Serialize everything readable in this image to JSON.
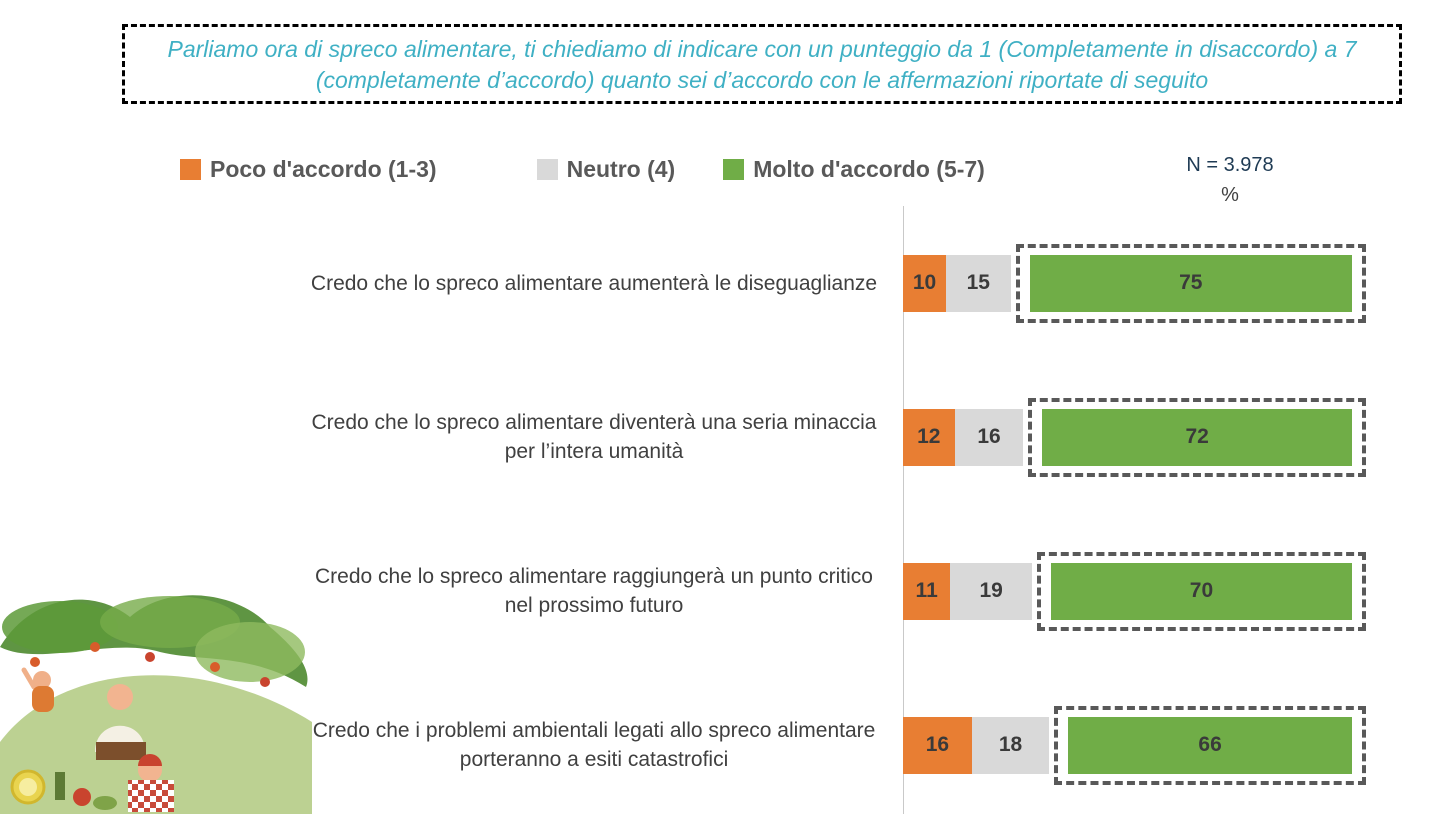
{
  "header": {
    "question_text": "Parliamo ora di spreco alimentare, ti chiediamo di indicare con un punteggio da 1 (Completamente in disaccordo) a 7 (completamente d’accordo) quanto sei d’accordo con le affermazioni riportate di seguito"
  },
  "legend": {
    "items": [
      {
        "label": "Poco d'accordo (1-3)",
        "color": "#E87E33"
      },
      {
        "label": "Neutro (4)",
        "color": "#D9D9D9"
      },
      {
        "label": "Molto d'accordo (5-7)",
        "color": "#70AD47"
      }
    ]
  },
  "sample": {
    "n_label": "N = 3.978",
    "unit": "%"
  },
  "chart_data": {
    "type": "bar",
    "orientation": "horizontal",
    "stacked": true,
    "xlim": [
      0,
      100
    ],
    "legend_position": "top",
    "value_labels": true,
    "categories": [
      "Credo che lo spreco alimentare aumenterà le diseguaglianze",
      "Credo che lo spreco alimentare diventerà una seria minaccia per l’intera umanità",
      "Credo che lo spreco alimentare raggiungerà un punto critico nel prossimo futuro",
      "Credo che i problemi ambientali legati allo spreco alimentare porteranno a esiti catastrofici"
    ],
    "series": [
      {
        "name": "Poco d'accordo (1-3)",
        "color": "#E87E33",
        "values": [
          10,
          12,
          11,
          16
        ],
        "highlighted": false
      },
      {
        "name": "Neutro (4)",
        "color": "#D9D9D9",
        "values": [
          15,
          16,
          19,
          18
        ],
        "highlighted": false
      },
      {
        "name": "Molto d'accordo (5-7)",
        "color": "#70AD47",
        "values": [
          75,
          72,
          70,
          66
        ],
        "highlighted": true
      }
    ],
    "highlight_note": "green 'Molto d'accordo' bars outlined with dark dashed border"
  }
}
